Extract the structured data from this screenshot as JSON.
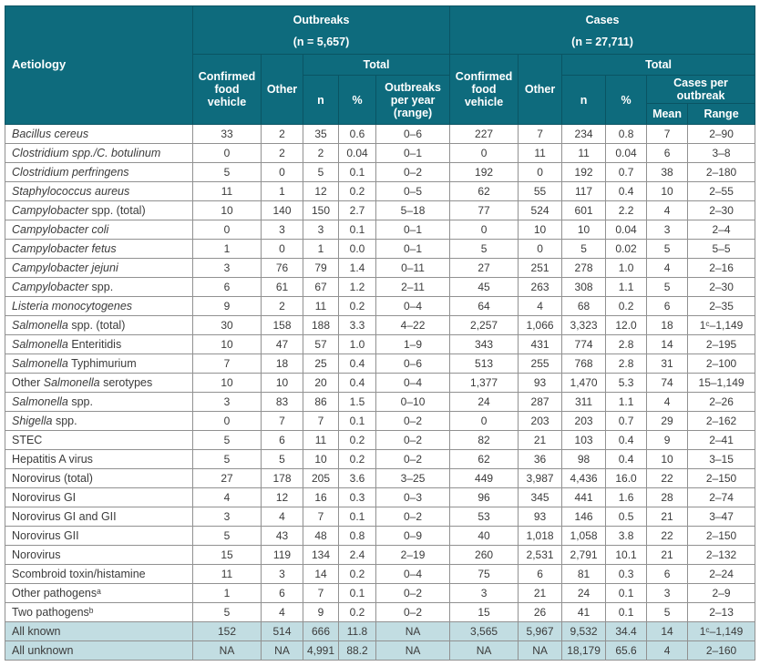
{
  "colors": {
    "header_teal": "#0e6b7d",
    "header_border": "#0a5463",
    "summary_row_bg": "#c2dde2",
    "body_border": "#919191",
    "body_text": "#3b3b3b"
  },
  "table": {
    "header": {
      "aetiology": "Aetiology",
      "outbreaks": {
        "title": "Outbreaks",
        "count": "(n = 5,657)"
      },
      "cases": {
        "title": "Cases",
        "count": "(n = 27,711)"
      },
      "confirmed_food_vehicle": "Confirmed food vehicle",
      "other": "Other",
      "total": "Total",
      "n": "n",
      "percent": "%",
      "outbreaks_per_year": "Outbreaks per year (range)",
      "cases_per_outbreak": "Cases per outbreak",
      "mean": "Mean",
      "range": "Range"
    },
    "value_columns": [
      "outbreaks_confirmed_food_vehicle",
      "outbreaks_other",
      "outbreaks_n",
      "outbreaks_percent",
      "outbreaks_per_year_range",
      "cases_confirmed_food_vehicle",
      "cases_other",
      "cases_n",
      "cases_percent",
      "cases_per_outbreak_mean",
      "cases_per_outbreak_range"
    ],
    "rows": [
      {
        "label": [
          {
            "t": "Bacillus cereus",
            "i": 1
          }
        ],
        "summary": false,
        "values": [
          "33",
          "2",
          "35",
          "0.6",
          "0–6",
          "227",
          "7",
          "234",
          "0.8",
          "7",
          "2–90"
        ]
      },
      {
        "label": [
          {
            "t": "Clostridium spp./C. botulinum",
            "i": 1
          }
        ],
        "summary": false,
        "values": [
          "0",
          "2",
          "2",
          "0.04",
          "0–1",
          "0",
          "11",
          "11",
          "0.04",
          "6",
          "3–8"
        ]
      },
      {
        "label": [
          {
            "t": "Clostridium perfringens",
            "i": 1
          }
        ],
        "summary": false,
        "values": [
          "5",
          "0",
          "5",
          "0.1",
          "0–2",
          "192",
          "0",
          "192",
          "0.7",
          "38",
          "2–180"
        ]
      },
      {
        "label": [
          {
            "t": "Staphylococcus aureus",
            "i": 1
          }
        ],
        "summary": false,
        "values": [
          "11",
          "1",
          "12",
          "0.2",
          "0–5",
          "62",
          "55",
          "117",
          "0.4",
          "10",
          "2–55"
        ]
      },
      {
        "label": [
          {
            "t": "Campylobacter",
            "i": 1
          },
          {
            "t": " spp. (total)",
            "i": 0
          }
        ],
        "summary": false,
        "values": [
          "10",
          "140",
          "150",
          "2.7",
          "5–18",
          "77",
          "524",
          "601",
          "2.2",
          "4",
          "2–30"
        ]
      },
      {
        "label": [
          {
            "t": "Campylobacter coli",
            "i": 1
          }
        ],
        "summary": false,
        "values": [
          "0",
          "3",
          "3",
          "0.1",
          "0–1",
          "0",
          "10",
          "10",
          "0.04",
          "3",
          "2–4"
        ]
      },
      {
        "label": [
          {
            "t": "Campylobacter fetus",
            "i": 1
          }
        ],
        "summary": false,
        "values": [
          "1",
          "0",
          "1",
          "0.0",
          "0–1",
          "5",
          "0",
          "5",
          "0.02",
          "5",
          "5–5"
        ]
      },
      {
        "label": [
          {
            "t": "Campylobacter jejuni",
            "i": 1
          }
        ],
        "summary": false,
        "values": [
          "3",
          "76",
          "79",
          "1.4",
          "0–11",
          "27",
          "251",
          "278",
          "1.0",
          "4",
          "2–16"
        ]
      },
      {
        "label": [
          {
            "t": "Campylobacter",
            "i": 1
          },
          {
            "t": " spp.",
            "i": 0
          }
        ],
        "summary": false,
        "values": [
          "6",
          "61",
          "67",
          "1.2",
          "2–11",
          "45",
          "263",
          "308",
          "1.1",
          "5",
          "2–30"
        ]
      },
      {
        "label": [
          {
            "t": "Listeria monocytogenes",
            "i": 1
          }
        ],
        "summary": false,
        "values": [
          "9",
          "2",
          "11",
          "0.2",
          "0–4",
          "64",
          "4",
          "68",
          "0.2",
          "6",
          "2–35"
        ]
      },
      {
        "label": [
          {
            "t": "Salmonella",
            "i": 1
          },
          {
            "t": " spp. (total)",
            "i": 0
          }
        ],
        "summary": false,
        "values": [
          "30",
          "158",
          "188",
          "3.3",
          "4–22",
          "2,257",
          "1,066",
          "3,323",
          "12.0",
          "18",
          "1ᶜ–1,149"
        ]
      },
      {
        "label": [
          {
            "t": "Salmonella",
            "i": 1
          },
          {
            "t": " Enteritidis",
            "i": 0
          }
        ],
        "summary": false,
        "values": [
          "10",
          "47",
          "57",
          "1.0",
          "1–9",
          "343",
          "431",
          "774",
          "2.8",
          "14",
          "2–195"
        ]
      },
      {
        "label": [
          {
            "t": "Salmonella",
            "i": 1
          },
          {
            "t": " Typhimurium",
            "i": 0
          }
        ],
        "summary": false,
        "values": [
          "7",
          "18",
          "25",
          "0.4",
          "0–6",
          "513",
          "255",
          "768",
          "2.8",
          "31",
          "2–100"
        ]
      },
      {
        "label": [
          {
            "t": "Other ",
            "i": 0
          },
          {
            "t": "Salmonella",
            "i": 1
          },
          {
            "t": " serotypes",
            "i": 0
          }
        ],
        "summary": false,
        "values": [
          "10",
          "10",
          "20",
          "0.4",
          "0–4",
          "1,377",
          "93",
          "1,470",
          "5.3",
          "74",
          "15–1,149"
        ]
      },
      {
        "label": [
          {
            "t": "Salmonella",
            "i": 1
          },
          {
            "t": " spp.",
            "i": 0
          }
        ],
        "summary": false,
        "values": [
          "3",
          "83",
          "86",
          "1.5",
          "0–10",
          "24",
          "287",
          "311",
          "1.1",
          "4",
          "2–26"
        ]
      },
      {
        "label": [
          {
            "t": "Shigella",
            "i": 1
          },
          {
            "t": " spp.",
            "i": 0
          }
        ],
        "summary": false,
        "values": [
          "0",
          "7",
          "7",
          "0.1",
          "0–2",
          "0",
          "203",
          "203",
          "0.7",
          "29",
          "2–162"
        ]
      },
      {
        "label": [
          {
            "t": "STEC",
            "i": 0
          }
        ],
        "summary": false,
        "values": [
          "5",
          "6",
          "11",
          "0.2",
          "0–2",
          "82",
          "21",
          "103",
          "0.4",
          "9",
          "2–41"
        ]
      },
      {
        "label": [
          {
            "t": "Hepatitis A virus",
            "i": 0
          }
        ],
        "summary": false,
        "values": [
          "5",
          "5",
          "10",
          "0.2",
          "0–2",
          "62",
          "36",
          "98",
          "0.4",
          "10",
          "3–15"
        ]
      },
      {
        "label": [
          {
            "t": "Norovirus (total)",
            "i": 0
          }
        ],
        "summary": false,
        "values": [
          "27",
          "178",
          "205",
          "3.6",
          "3–25",
          "449",
          "3,987",
          "4,436",
          "16.0",
          "22",
          "2–150"
        ]
      },
      {
        "label": [
          {
            "t": "Norovirus GI",
            "i": 0
          }
        ],
        "summary": false,
        "values": [
          "4",
          "12",
          "16",
          "0.3",
          "0–3",
          "96",
          "345",
          "441",
          "1.6",
          "28",
          "2–74"
        ]
      },
      {
        "label": [
          {
            "t": "Norovirus GI and GII",
            "i": 0
          }
        ],
        "summary": false,
        "values": [
          "3",
          "4",
          "7",
          "0.1",
          "0–2",
          "53",
          "93",
          "146",
          "0.5",
          "21",
          "3–47"
        ]
      },
      {
        "label": [
          {
            "t": "Norovirus GII",
            "i": 0
          }
        ],
        "summary": false,
        "values": [
          "5",
          "43",
          "48",
          "0.8",
          "0–9",
          "40",
          "1,018",
          "1,058",
          "3.8",
          "22",
          "2–150"
        ]
      },
      {
        "label": [
          {
            "t": "Norovirus",
            "i": 0
          }
        ],
        "summary": false,
        "values": [
          "15",
          "119",
          "134",
          "2.4",
          "2–19",
          "260",
          "2,531",
          "2,791",
          "10.1",
          "21",
          "2–132"
        ]
      },
      {
        "label": [
          {
            "t": "Scombroid toxin/histamine",
            "i": 0
          }
        ],
        "summary": false,
        "values": [
          "11",
          "3",
          "14",
          "0.2",
          "0–4",
          "75",
          "6",
          "81",
          "0.3",
          "6",
          "2–24"
        ]
      },
      {
        "label": [
          {
            "t": "Other pathogensᵃ",
            "i": 0
          }
        ],
        "summary": false,
        "values": [
          "1",
          "6",
          "7",
          "0.1",
          "0–2",
          "3",
          "21",
          "24",
          "0.1",
          "3",
          "2–9"
        ]
      },
      {
        "label": [
          {
            "t": "Two pathogensᵇ",
            "i": 0
          }
        ],
        "summary": false,
        "values": [
          "5",
          "4",
          "9",
          "0.2",
          "0–2",
          "15",
          "26",
          "41",
          "0.1",
          "5",
          "2–13"
        ]
      },
      {
        "label": [
          {
            "t": "All known",
            "i": 0
          }
        ],
        "summary": true,
        "values": [
          "152",
          "514",
          "666",
          "11.8",
          "NA",
          "3,565",
          "5,967",
          "9,532",
          "34.4",
          "14",
          "1ᶜ–1,149"
        ]
      },
      {
        "label": [
          {
            "t": "All unknown",
            "i": 0
          }
        ],
        "summary": true,
        "values": [
          "NA",
          "NA",
          "4,991",
          "88.2",
          "NA",
          "NA",
          "NA",
          "18,179",
          "65.6",
          "4",
          "2–160"
        ]
      }
    ]
  }
}
